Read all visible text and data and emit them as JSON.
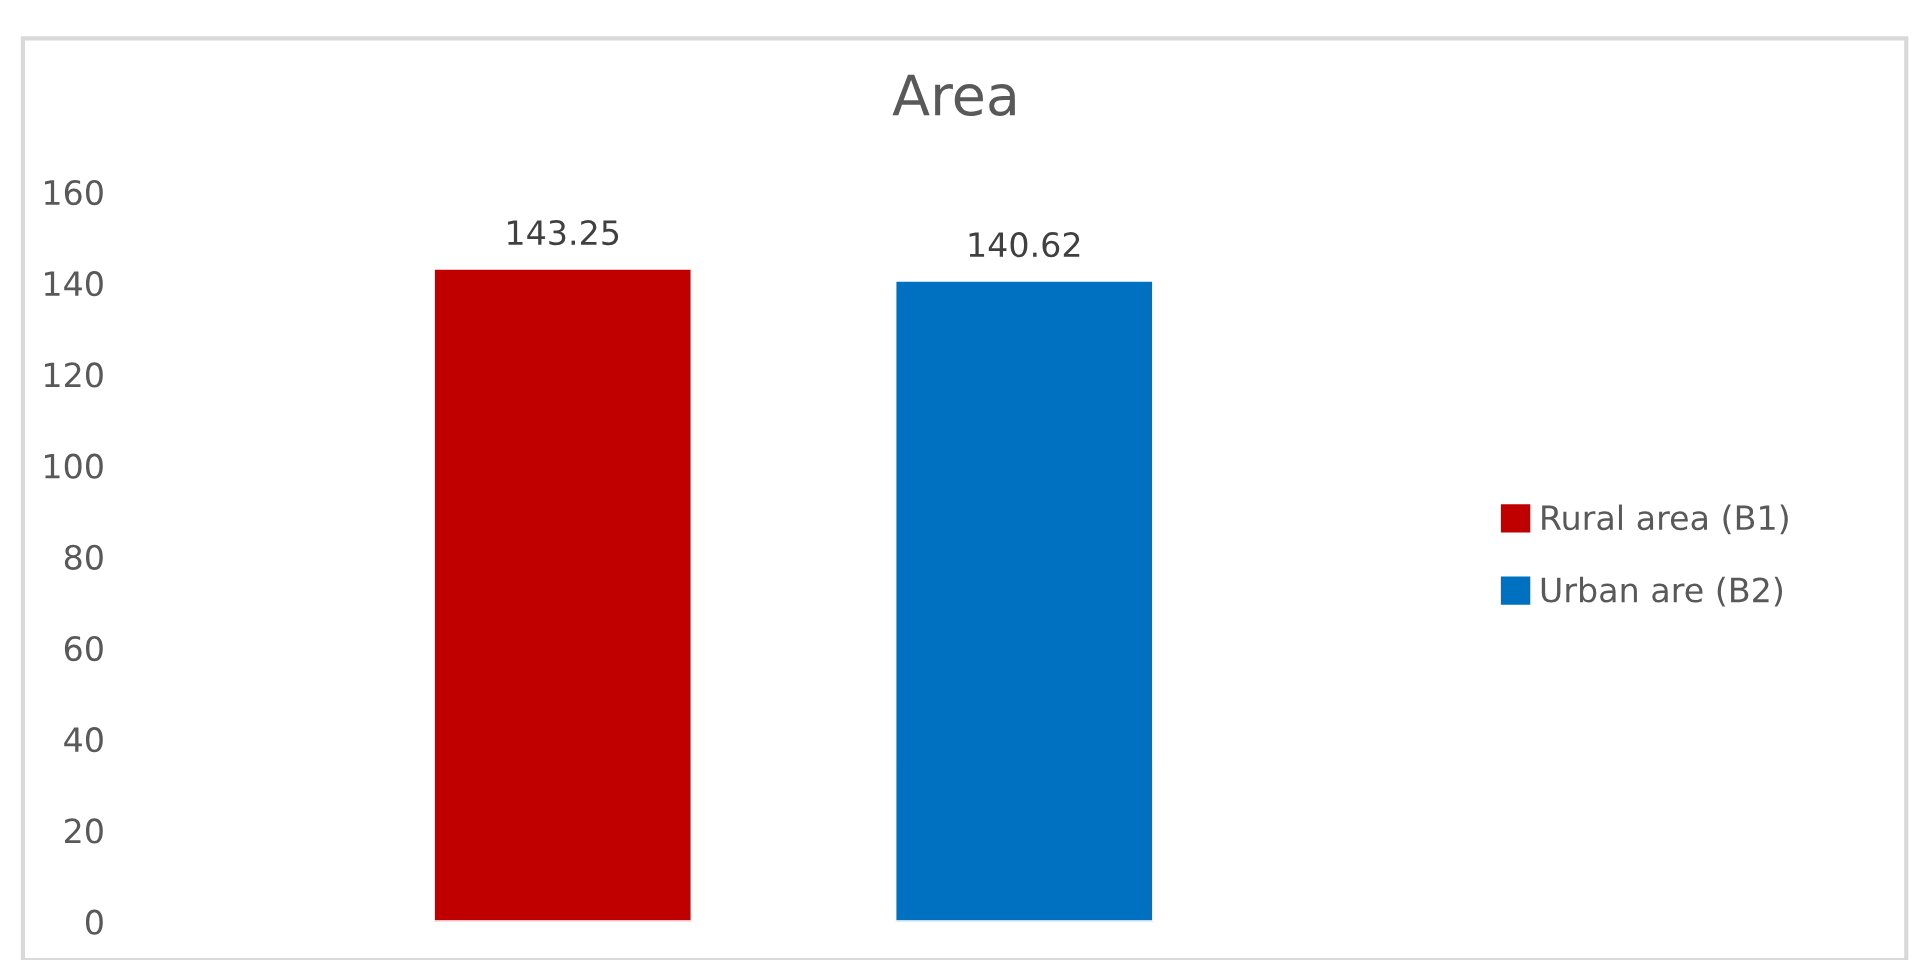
{
  "chart_data": {
    "type": "bar",
    "title": "Area",
    "categories": [
      null
    ],
    "series": [
      {
        "name": "Rural area (B1)",
        "color": "#c00000",
        "values": [
          143.25
        ]
      },
      {
        "name": "Urban are (B2)",
        "color": "#0070c0",
        "values": [
          140.62
        ]
      }
    ],
    "ylim": [
      0,
      160
    ],
    "yticks": [
      0,
      20,
      40,
      60,
      80,
      100,
      120,
      140,
      160
    ],
    "grid": false,
    "legend": "right",
    "data_labels": true
  }
}
